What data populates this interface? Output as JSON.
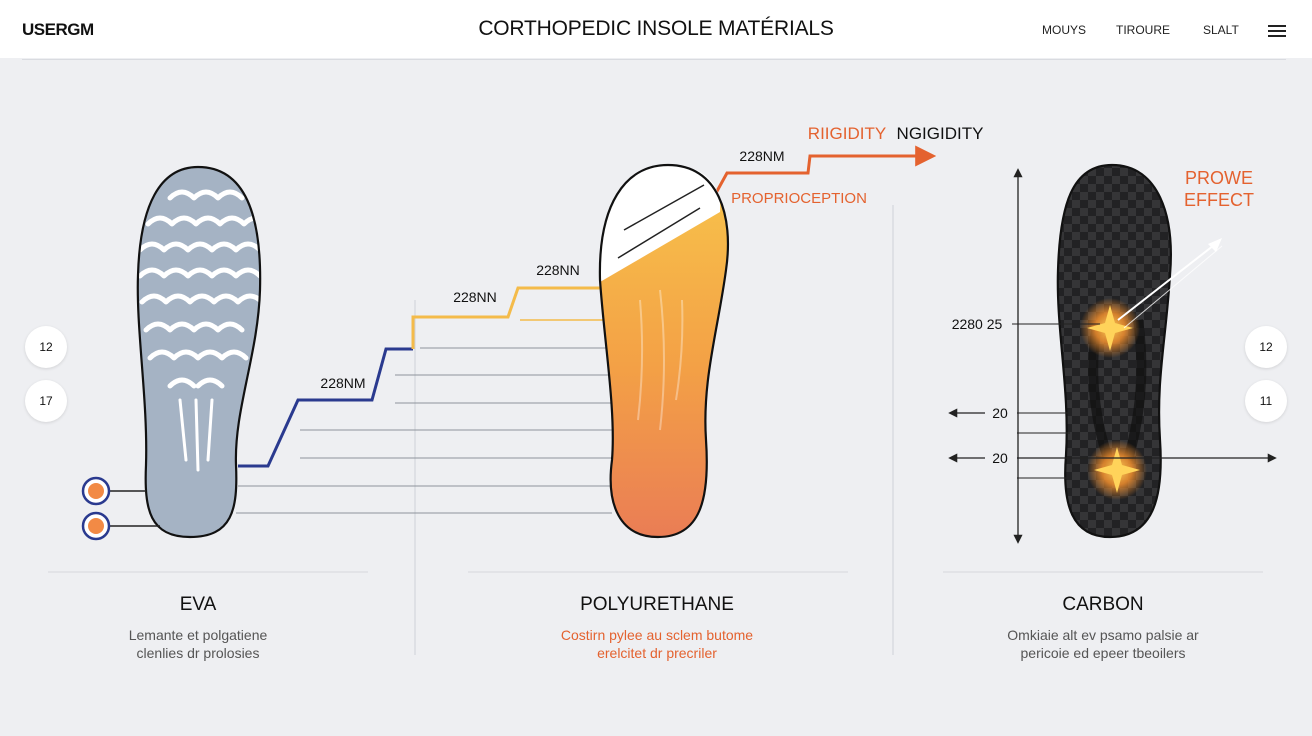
{
  "header": {
    "logo": "USERGM",
    "title": "CORTHOPEDIC INSOLE MATÉRIALS",
    "nav": [
      "MOUYS",
      "TIROURE",
      "SLALT"
    ]
  },
  "side_badges": {
    "left": [
      "12",
      "17"
    ],
    "right": [
      "12",
      "11"
    ]
  },
  "step_labels": [
    "228NM",
    "228NN",
    "228NN",
    "228NM"
  ],
  "legend": {
    "rigidity_accent": "RIIGIDITY",
    "rigidity": "NGIGIDITY",
    "proprioception": "PROPRIOCEPTION"
  },
  "carbon": {
    "effect_line1": "PROWE",
    "effect_line2": "EFFECT",
    "dim_main": "2280 25",
    "dim_a": "20",
    "dim_b": "20"
  },
  "columns": [
    {
      "name": "EVA",
      "desc1": "Lemante et polgatiene",
      "desc2": "clenlies dr prolosies"
    },
    {
      "name": "POLYURETHANE",
      "desc1": "Costirn pylee au sclem butome",
      "desc2": "erelcitet dr precriler"
    },
    {
      "name": "CARBON",
      "desc1": "Omkiaie alt ev psamo palsie ar",
      "desc2": "pericoie ed epeer tbeoilers"
    }
  ],
  "colors": {
    "accent_orange": "#e4622f",
    "navy": "#2a3a8f",
    "yellow": "#f4bb4a",
    "eva_gray": "#a5b3c4",
    "carbon_dark": "#2a2a2c"
  }
}
